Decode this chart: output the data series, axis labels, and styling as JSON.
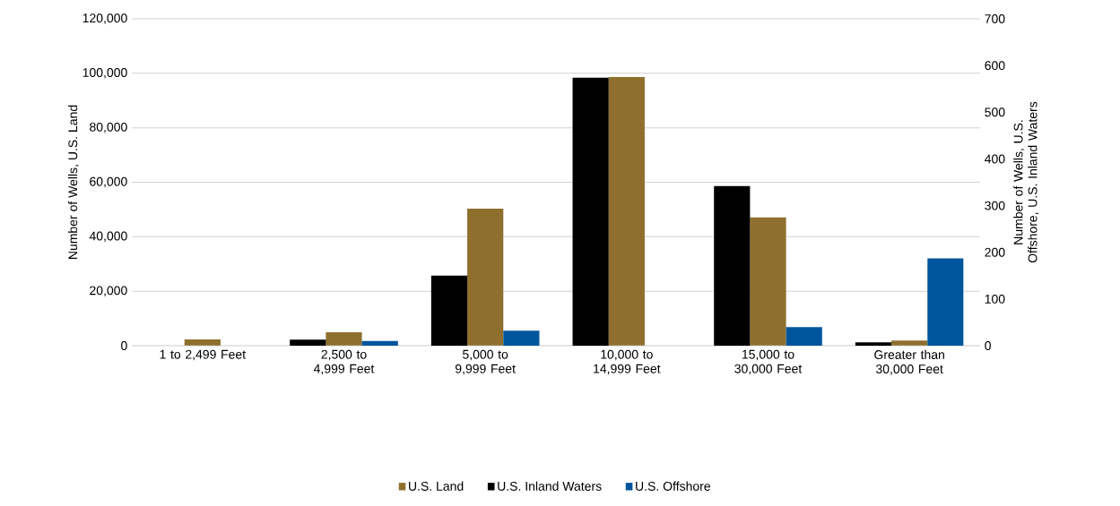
{
  "chart_data": {
    "type": "bar",
    "categories": [
      "1 to 2,499 Feet",
      "2,500 to 4,999 Feet",
      "5,000 to 9,999 Feet",
      "10,000 to 14,999 Feet",
      "15,000 to 30,000 Feet",
      "Greater than 30,000 Feet"
    ],
    "series": [
      {
        "name": "U.S. Land",
        "color": "#8e6f2d",
        "values": [
          2300,
          4900,
          50300,
          98700,
          47100,
          1900
        ]
      },
      {
        "name": "U.S. Inland Waters",
        "color": "#000000",
        "axis": "y2",
        "values": [
          null,
          13,
          150,
          574,
          342,
          7
        ]
      },
      {
        "name": "U.S. Offshore",
        "color": "#00569d",
        "axis": "y2",
        "values": [
          null,
          10,
          32,
          null,
          40,
          187
        ]
      }
    ],
    "ylabel": "Number of Wells, U.S. Land",
    "y2label": "Number of Wells, U.S. Offshore, U.S. Inland Waters",
    "ylim": [
      0,
      120000
    ],
    "yticks": [
      0,
      {
        "value": 20000,
        "label": "20,000"
      },
      {
        "value": 40000,
        "label": "40,000"
      },
      {
        "value": 60000,
        "label": "60,000"
      },
      {
        "value": 80000,
        "label": "80,000"
      },
      {
        "value": 100000,
        "label": "100,000"
      },
      {
        "value": 120000,
        "label": "120,000"
      }
    ],
    "y2lim": [
      0,
      700
    ],
    "y2ticks": [
      0,
      100,
      200,
      300,
      400,
      500,
      600,
      700
    ],
    "grid": "y",
    "legend": "bottom"
  }
}
